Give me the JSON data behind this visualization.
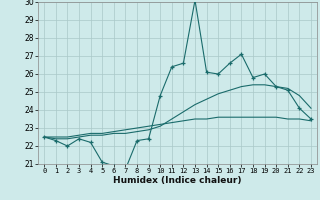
{
  "xlabel": "Humidex (Indice chaleur)",
  "background_color": "#ceeaea",
  "grid_color": "#aac8c8",
  "line_color": "#1a6b6b",
  "x": [
    0,
    1,
    2,
    3,
    4,
    5,
    6,
    7,
    8,
    9,
    10,
    11,
    12,
    13,
    14,
    15,
    16,
    17,
    18,
    19,
    20,
    21,
    22,
    23
  ],
  "y_main": [
    22.5,
    22.3,
    22.0,
    22.4,
    22.2,
    21.1,
    20.9,
    20.7,
    22.3,
    22.4,
    24.8,
    26.4,
    26.6,
    30.1,
    26.1,
    26.0,
    26.6,
    27.1,
    25.8,
    26.0,
    25.3,
    25.1,
    24.1,
    23.5
  ],
  "y_bell": [
    22.5,
    22.4,
    22.4,
    22.5,
    22.6,
    22.6,
    22.7,
    22.7,
    22.8,
    22.9,
    23.1,
    23.5,
    23.9,
    24.3,
    24.6,
    24.9,
    25.1,
    25.3,
    25.4,
    25.4,
    25.3,
    25.2,
    24.8,
    24.1
  ],
  "y_linear": [
    22.5,
    22.5,
    22.5,
    22.6,
    22.7,
    22.7,
    22.8,
    22.9,
    23.0,
    23.1,
    23.2,
    23.3,
    23.4,
    23.5,
    23.5,
    23.6,
    23.6,
    23.6,
    23.6,
    23.6,
    23.6,
    23.5,
    23.5,
    23.4
  ],
  "ylim": [
    21,
    30
  ],
  "xlim": [
    -0.5,
    23.5
  ],
  "yticks": [
    21,
    22,
    23,
    24,
    25,
    26,
    27,
    28,
    29,
    30
  ],
  "xticks": [
    0,
    1,
    2,
    3,
    4,
    5,
    6,
    7,
    8,
    9,
    10,
    11,
    12,
    13,
    14,
    15,
    16,
    17,
    18,
    19,
    20,
    21,
    22,
    23
  ]
}
